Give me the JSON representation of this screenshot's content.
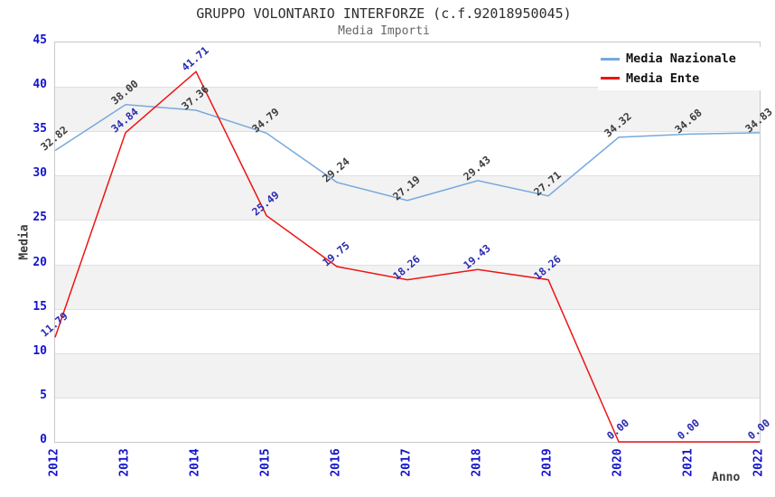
{
  "chart_data": {
    "type": "line",
    "title": "GRUPPO VOLONTARIO INTERFORZE (c.f.92018950045)",
    "subtitle": "Media Importi",
    "xlabel": "Anno",
    "ylabel": "Media",
    "x": [
      "2012",
      "2013",
      "2014",
      "2015",
      "2016",
      "2017",
      "2018",
      "2019",
      "2020",
      "2021",
      "2022"
    ],
    "ylim": [
      0,
      45
    ],
    "ytick_step": 5,
    "grid": "horizontal gridlines every 5 units with alternating gray bands (gray on 40-35, 30-25, 20-15, 10-5)",
    "legend_position": "top-right inside plot",
    "point_labels": "each point labeled with its value, 2 decimals, rotated -40deg above point",
    "series": [
      {
        "name": "Media Nazionale",
        "line_color": "#76a9dd",
        "label_color": "#3c3c3c",
        "values": [
          32.82,
          38.0,
          37.36,
          34.79,
          29.24,
          27.19,
          29.43,
          27.71,
          34.32,
          34.68,
          34.83
        ]
      },
      {
        "name": "Media Ente",
        "line_color": "#ee1414",
        "label_color": "#2b2bb2",
        "values": [
          11.79,
          34.84,
          41.71,
          25.49,
          19.75,
          18.26,
          19.43,
          18.26,
          0.0,
          0.0,
          0.0
        ]
      }
    ],
    "colors": {
      "tick_label": "#1414cc",
      "axis_label": "#3c3c3c",
      "title": "#2e2e2e",
      "subtitle": "#666666",
      "band_gray": "#f2f2f2",
      "gridline": "#e0e0e0",
      "frame": "#c9c9c9",
      "background": "#ffffff"
    }
  }
}
